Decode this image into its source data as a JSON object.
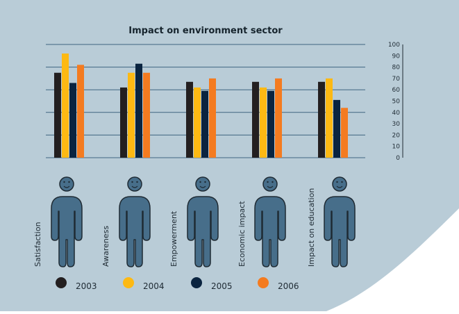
{
  "colors": {
    "panel": "#b9ccd7",
    "figure": "#476e8a",
    "figure_outline": "#1e2a33",
    "gridline": "#3f6580",
    "axis_text": "#1e2a33",
    "title_text": "#16242d"
  },
  "chart_data": {
    "type": "bar",
    "title": "Impact on environment sector",
    "xlabel": "",
    "ylabel": "",
    "ylim": [
      0,
      100
    ],
    "y_ticks": [
      "0",
      "10",
      "20",
      "30",
      "40",
      "50",
      "60",
      "70",
      "80",
      "90",
      "100"
    ],
    "grid": true,
    "legend_position": "bottom-left",
    "categories": [
      "Satisfaction",
      "Awareness",
      "Empowerment",
      "Economic impact",
      "Impact on education"
    ],
    "category_icon": "person-icon",
    "series": [
      {
        "name": "2003",
        "color": "#231f20",
        "values": [
          75,
          62,
          67,
          67,
          67
        ]
      },
      {
        "name": "2004",
        "color": "#fdb913",
        "values": [
          92,
          75,
          62,
          62,
          70
        ]
      },
      {
        "name": "2005",
        "color": "#0a2440",
        "values": [
          66,
          83,
          59,
          59,
          51
        ]
      },
      {
        "name": "2006",
        "color": "#f47b20",
        "values": [
          82,
          75,
          70,
          70,
          44
        ]
      }
    ]
  }
}
